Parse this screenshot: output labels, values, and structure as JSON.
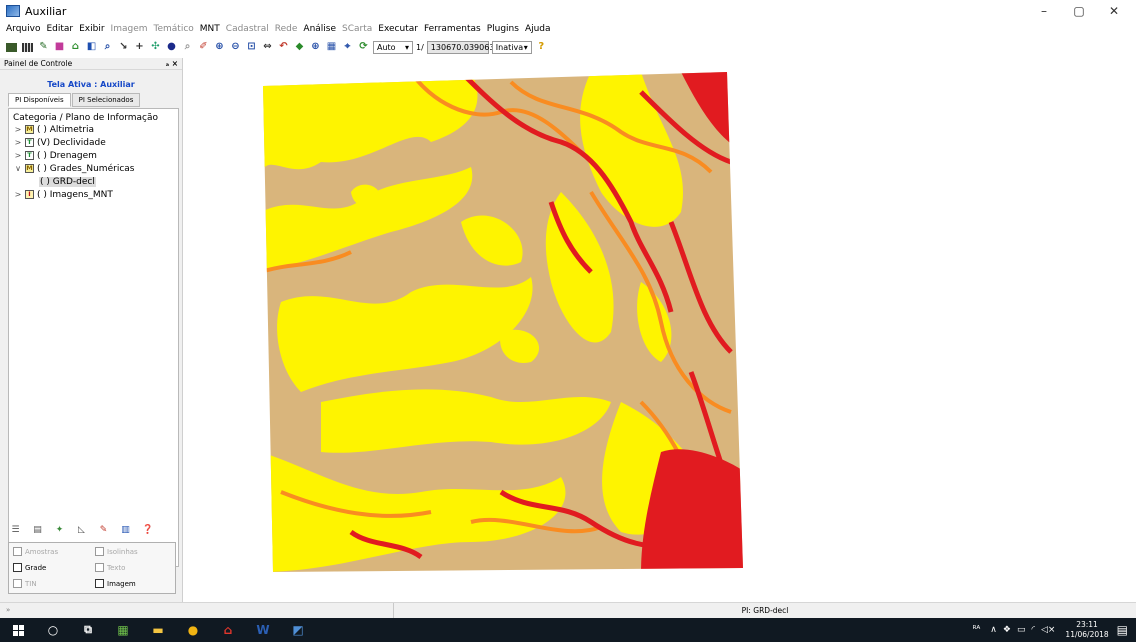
{
  "window": {
    "title": "Auxiliar",
    "minimize": "–",
    "maximize": "▢",
    "close": "✕"
  },
  "menu": [
    {
      "label": "Arquivo",
      "enabled": true
    },
    {
      "label": "Editar",
      "enabled": true
    },
    {
      "label": "Exibir",
      "enabled": true
    },
    {
      "label": "Imagem",
      "enabled": false
    },
    {
      "label": "Temático",
      "enabled": false
    },
    {
      "label": "MNT",
      "enabled": true
    },
    {
      "label": "Cadastral",
      "enabled": false
    },
    {
      "label": "Rede",
      "enabled": false
    },
    {
      "label": "Análise",
      "enabled": true
    },
    {
      "label": "SCarta",
      "enabled": false
    },
    {
      "label": "Executar",
      "enabled": true
    },
    {
      "label": "Ferramentas",
      "enabled": true
    },
    {
      "label": "Plugins",
      "enabled": true
    },
    {
      "label": "Ajuda",
      "enabled": true
    }
  ],
  "toolbar": {
    "zoom_mode": "Auto",
    "scale_prefix": "1/",
    "scale_value": "130670.039063",
    "state": "Inativa"
  },
  "panel": {
    "header": "Painel de Controle",
    "header_icons": "ₐ ×",
    "active_screen": "Tela Ativa : Auxiliar",
    "tabs": [
      "PI Disponíveis",
      "PI Selecionados"
    ],
    "tree_header": "Categoria / Plano de Informação",
    "items": [
      {
        "label": "( ) Altimetria",
        "icon": "M",
        "expander": ">"
      },
      {
        "label": "(V) Declividade",
        "icon": "T",
        "expander": ">"
      },
      {
        "label": "( ) Drenagem",
        "icon": "T",
        "expander": ">"
      },
      {
        "label": "( ) Grades_Numéricas",
        "icon": "M",
        "expander": "∨"
      },
      {
        "label": "( ) GRD-decl"
      },
      {
        "label": "( ) Imagens_MNT",
        "icon": "I",
        "expander": ">"
      }
    ],
    "visibility": {
      "amostras": {
        "label": "Amostras",
        "checked": false,
        "enabled": false
      },
      "isolinhas": {
        "label": "Isolinhas",
        "checked": false,
        "enabled": false
      },
      "grade": {
        "label": "Grade",
        "checked": false,
        "enabled": true
      },
      "texto": {
        "label": "Texto",
        "checked": false,
        "enabled": false
      },
      "tin": {
        "label": "TIN",
        "checked": false,
        "enabled": false
      },
      "imagem": {
        "label": "Imagem",
        "checked": false,
        "enabled": true
      }
    }
  },
  "map": {
    "colors": {
      "base": "#d9b57c",
      "low": "#fef400",
      "mid": "#f98c21",
      "high": "#e11b20"
    }
  },
  "status": {
    "left": "»",
    "layer": "PI: GRD-decl"
  },
  "taskbar": {
    "time": "23:11",
    "date": "11/06/2018"
  }
}
